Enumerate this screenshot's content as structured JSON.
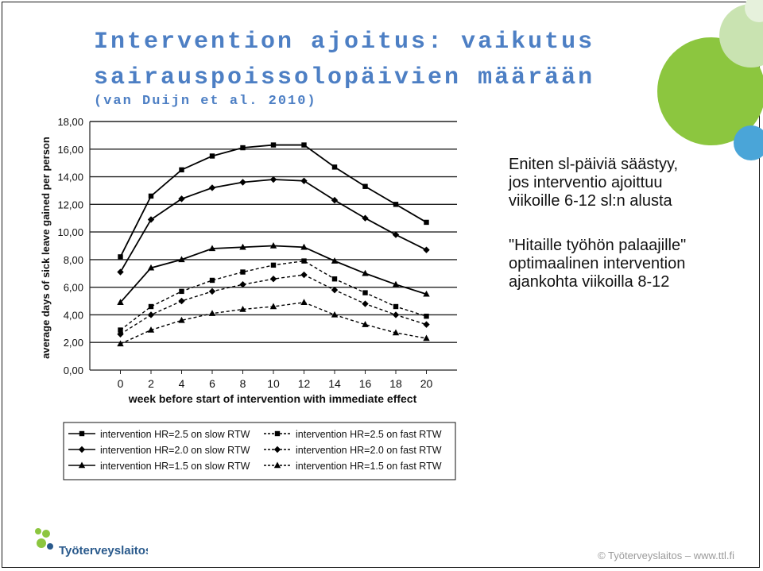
{
  "slide": {
    "title_line1": "Intervention ajoitus: vaikutus",
    "title_line2": "sairauspoissolopäivien määrään",
    "title_line3": "(van Duijn et al. 2010)",
    "text": [
      "Eniten sl-päiviä säästyy,",
      "jos interventio ajoittuu",
      "viikoille 6-12 sl:n alusta",
      "\"Hitaille työhön palaajille\"",
      "optimaalinen intervention",
      "ajankohta viikoilla 8-12"
    ],
    "footer": "© Työterveyslaitos   –   www.ttl.fi",
    "logo_text": "Työterveyslaitos",
    "colors": {
      "title": "#4d7fc4",
      "logo_green": "#8cc63f",
      "logo_dark": "#2a5a8c"
    }
  },
  "chart_data": {
    "type": "line",
    "xlabel": "week before start of intervention with immediate effect",
    "ylabel": "average days of sick leave gained per person",
    "x": [
      0,
      2,
      4,
      6,
      8,
      10,
      12,
      14,
      16,
      18,
      20
    ],
    "xlim": [
      -2,
      22
    ],
    "ylim": [
      0,
      18
    ],
    "yticks": [
      "0,00",
      "2,00",
      "4,00",
      "6,00",
      "8,00",
      "10,00",
      "12,00",
      "14,00",
      "16,00",
      "18,00"
    ],
    "xticks": [
      "0",
      "2",
      "4",
      "6",
      "8",
      "10",
      "12",
      "14",
      "16",
      "18",
      "20"
    ],
    "legend_position": "bottom",
    "series": [
      {
        "name": "intervention HR=2.5 on slow RTW",
        "marker": "square",
        "dash": "solid",
        "values": [
          8.2,
          12.6,
          14.5,
          15.5,
          16.1,
          16.3,
          16.3,
          14.7,
          13.3,
          12.0,
          10.7
        ]
      },
      {
        "name": "intervention HR=2.0 on slow RTW",
        "marker": "diamond",
        "dash": "solid",
        "values": [
          7.1,
          10.9,
          12.4,
          13.2,
          13.6,
          13.8,
          13.7,
          12.3,
          11.0,
          9.8,
          8.7
        ]
      },
      {
        "name": "intervention HR=1.5 on slow RTW",
        "marker": "triangle",
        "dash": "solid",
        "values": [
          4.9,
          7.4,
          8.0,
          8.8,
          8.9,
          9.0,
          8.9,
          7.9,
          7.0,
          6.2,
          5.5
        ]
      },
      {
        "name": "intervention HR=2.5 on fast RTW",
        "marker": "square",
        "dash": "dashed",
        "values": [
          2.9,
          4.6,
          5.7,
          6.5,
          7.1,
          7.6,
          7.9,
          6.6,
          5.6,
          4.6,
          3.9
        ]
      },
      {
        "name": "intervention HR=2.0 on fast RTW",
        "marker": "diamond",
        "dash": "dashed",
        "values": [
          2.6,
          4.0,
          5.0,
          5.7,
          6.2,
          6.6,
          6.9,
          5.8,
          4.8,
          4.0,
          3.3
        ]
      },
      {
        "name": "intervention HR=1.5 on fast RTW",
        "marker": "triangle",
        "dash": "dashed",
        "values": [
          1.9,
          2.9,
          3.6,
          4.1,
          4.4,
          4.6,
          4.9,
          4.0,
          3.3,
          2.7,
          2.3
        ]
      }
    ]
  }
}
